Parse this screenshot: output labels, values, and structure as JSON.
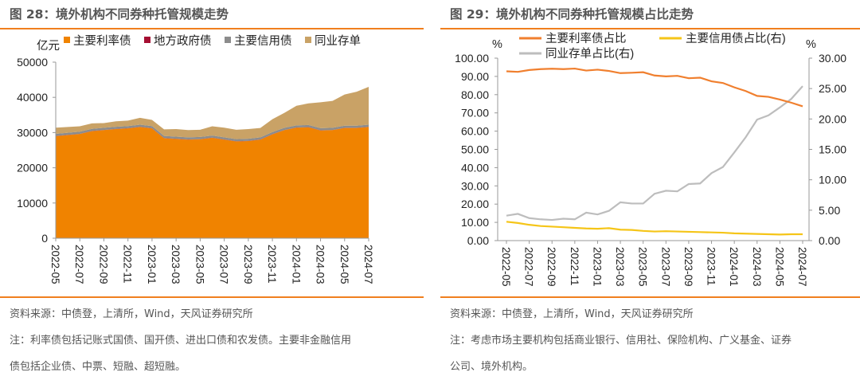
{
  "left": {
    "title": "图 28：境外机构不同券种托管规模走势",
    "source": "资料来源：中债登，上清所，Wind，天风证券研究所",
    "note1": "注：利率债包括记账式国债、国开债、进出口债和农发债。主要非金融信用",
    "note2": "债包括企业债、中票、短融、超短融。"
  },
  "right": {
    "title": "图 29：境外机构不同券种托管规模占比走势",
    "source": "资料来源：中债登，上清所，Wind，天风证券研究所",
    "note1": "注：考虑市场主要机构包括商业银行、信用社、保险机构、广义基金、证券",
    "note2": "公司、境外机构。"
  },
  "chart_data": [
    {
      "type": "area",
      "stacked": true,
      "unit_label": "亿元",
      "ylim": [
        0,
        50000
      ],
      "yticks": [
        0,
        10000,
        20000,
        30000,
        40000,
        50000
      ],
      "legend_placement": "top",
      "x": [
        "2022-05",
        "2022-06",
        "2022-07",
        "2022-08",
        "2022-09",
        "2022-10",
        "2022-11",
        "2022-12",
        "2023-01",
        "2023-02",
        "2023-03",
        "2023-04",
        "2023-05",
        "2023-06",
        "2023-07",
        "2023-08",
        "2023-09",
        "2023-10",
        "2023-11",
        "2023-12",
        "2024-01",
        "2024-02",
        "2024-03",
        "2024-04",
        "2024-05",
        "2024-06",
        "2024-07"
      ],
      "xtick_labels": [
        "2022-05",
        "2022-07",
        "2022-09",
        "2022-11",
        "2023-01",
        "2023-03",
        "2023-05",
        "2023-07",
        "2023-09",
        "2023-11",
        "2024-01",
        "2024-03",
        "2024-05",
        "2024-07"
      ],
      "series": [
        {
          "name": "主要利率债",
          "color": "#f08300",
          "values": [
            29000,
            29300,
            29600,
            30400,
            30700,
            31000,
            31200,
            31600,
            31200,
            28400,
            28200,
            28000,
            28100,
            28500,
            28000,
            27500,
            27600,
            28000,
            29500,
            30700,
            31400,
            31500,
            30600,
            30700,
            31300,
            31300,
            31600
          ]
        },
        {
          "name": "地方政府债",
          "color": "#a50f32",
          "values": [
            50,
            50,
            50,
            50,
            50,
            50,
            50,
            50,
            50,
            50,
            50,
            50,
            50,
            50,
            50,
            50,
            50,
            50,
            50,
            50,
            50,
            50,
            50,
            50,
            50,
            50,
            50
          ]
        },
        {
          "name": "主要信用债",
          "color": "#8c8c8c",
          "values": [
            600,
            600,
            600,
            600,
            600,
            600,
            600,
            600,
            600,
            600,
            600,
            600,
            600,
            600,
            600,
            600,
            600,
            600,
            600,
            600,
            600,
            600,
            600,
            600,
            600,
            600,
            600
          ]
        },
        {
          "name": "同业存单",
          "color": "#c9a266",
          "values": [
            1750,
            1650,
            1550,
            1550,
            1350,
            1550,
            1550,
            1950,
            1750,
            1850,
            2150,
            2050,
            2050,
            2650,
            2750,
            2650,
            2750,
            2650,
            3650,
            4250,
            5550,
            6150,
            7350,
            7650,
            8850,
            9650,
            10750
          ]
        }
      ]
    },
    {
      "type": "line",
      "left_unit": "%",
      "right_unit": "%",
      "ylim_left": [
        0,
        100
      ],
      "ylim_right": [
        0,
        30
      ],
      "yticks_left": [
        "0.00",
        "10.00",
        "20.00",
        "30.00",
        "40.00",
        "50.00",
        "60.00",
        "70.00",
        "80.00",
        "90.00",
        "100.00"
      ],
      "yticks_right": [
        "0.00",
        "5.00",
        "10.00",
        "15.00",
        "20.00",
        "25.00",
        "30.00"
      ],
      "xtick_labels": [
        "2022-05",
        "2022-07",
        "2022-09",
        "2022-11",
        "2023-01",
        "2023-03",
        "2023-05",
        "2023-07",
        "2023-09",
        "2023-11",
        "2024-01",
        "2024-03",
        "2024-05",
        "2024-07"
      ],
      "series": [
        {
          "name": "主要利率债占比",
          "axis": "left",
          "color": "#f07f2e",
          "values": [
            92.8,
            92.5,
            93.5,
            94,
            94.2,
            94,
            94.3,
            93.2,
            93.7,
            93,
            91.8,
            92,
            92.3,
            90.5,
            90,
            90.3,
            89,
            89.3,
            87.3,
            86.4,
            84,
            82,
            79.3,
            78.8,
            77.3,
            75.6,
            73.6
          ]
        },
        {
          "name": "主要信用债占比(右)",
          "axis": "right",
          "color": "#f5c518",
          "values": [
            3.1,
            2.9,
            2.6,
            2.4,
            2.3,
            2.2,
            2.1,
            2.0,
            1.95,
            2.05,
            1.8,
            1.75,
            1.6,
            1.5,
            1.55,
            1.5,
            1.45,
            1.4,
            1.35,
            1.3,
            1.2,
            1.15,
            1.1,
            1.05,
            1.0,
            1.05,
            1.05
          ]
        },
        {
          "name": "同业存单占比(右)",
          "axis": "right",
          "color": "#bdbdbd",
          "values": [
            4.1,
            4.4,
            3.7,
            3.5,
            3.4,
            3.6,
            3.5,
            4.6,
            4.3,
            4.9,
            6.3,
            6.1,
            6.1,
            7.7,
            8.2,
            8.1,
            9.3,
            9.4,
            11.1,
            12.1,
            14.5,
            17,
            19.9,
            20.6,
            21.9,
            23.3,
            25.4
          ]
        }
      ]
    }
  ]
}
